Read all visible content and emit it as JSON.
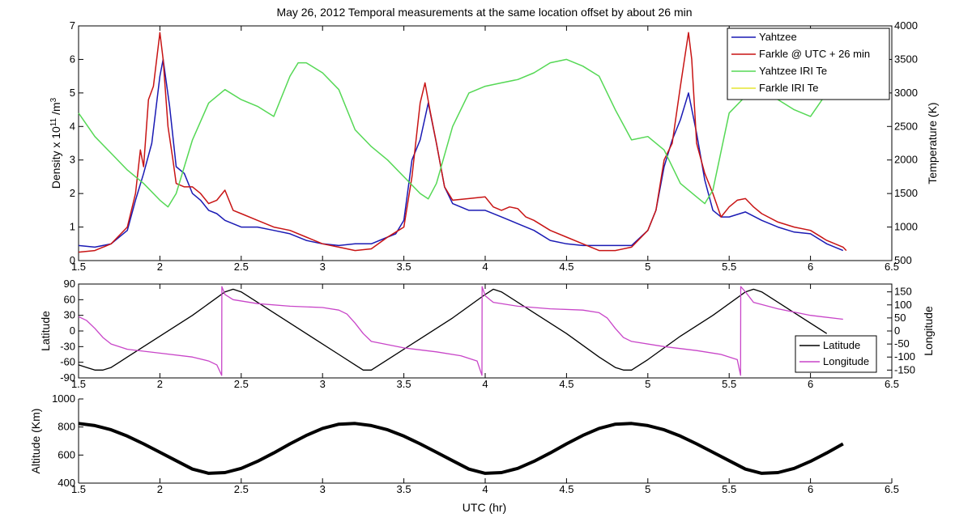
{
  "figure": {
    "title": "May 26, 2012 Temporal measurements at the same location offset by about 26 min",
    "xlabel": "UTC (hr)"
  },
  "chart_data": [
    {
      "type": "line",
      "panel": "density-temperature",
      "xlim": [
        1.5,
        6.5
      ],
      "x_ticks": [
        "1.5",
        "2",
        "2.5",
        "3",
        "3.5",
        "4",
        "4.5",
        "5",
        "5.5",
        "6",
        "6.5"
      ],
      "ylabel": "Density x 10",
      "ylabel_sup": "11",
      "ylabel_unit": " /m",
      "ylabel_unit_sup": "3",
      "ylim": [
        0,
        7
      ],
      "y_ticks": [
        "0",
        "1",
        "2",
        "3",
        "4",
        "5",
        "6",
        "7"
      ],
      "y2label": "Temperature (K)",
      "y2lim": [
        500,
        4000
      ],
      "y2_ticks": [
        "500",
        "1000",
        "1500",
        "2000",
        "2500",
        "3000",
        "3500",
        "4000"
      ],
      "legend": "top-right",
      "series": [
        {
          "name": "Yahtzee",
          "axis": "left",
          "color": "#1a1ab4",
          "x": [
            1.5,
            1.6,
            1.7,
            1.8,
            1.85,
            1.9,
            1.95,
            2.0,
            2.02,
            2.06,
            2.1,
            2.15,
            2.2,
            2.25,
            2.3,
            2.35,
            2.4,
            2.5,
            2.6,
            2.7,
            2.8,
            2.9,
            3.0,
            3.1,
            3.2,
            3.3,
            3.4,
            3.45,
            3.5,
            3.55,
            3.6,
            3.65,
            3.7,
            3.75,
            3.8,
            3.9,
            4.0,
            4.1,
            4.2,
            4.3,
            4.4,
            4.5,
            4.6,
            4.7,
            4.8,
            4.9,
            5.0,
            5.05,
            5.1,
            5.15,
            5.2,
            5.25,
            5.3,
            5.35,
            5.4,
            5.45,
            5.5,
            5.6,
            5.7,
            5.8,
            5.9,
            6.0,
            6.1,
            6.2
          ],
          "y": [
            0.45,
            0.4,
            0.5,
            0.9,
            1.8,
            2.6,
            3.5,
            5.5,
            6.0,
            4.6,
            2.8,
            2.6,
            2.0,
            1.8,
            1.5,
            1.4,
            1.2,
            1.0,
            1.0,
            0.9,
            0.8,
            0.6,
            0.5,
            0.45,
            0.5,
            0.5,
            0.7,
            0.8,
            1.2,
            3.0,
            3.6,
            4.7,
            3.5,
            2.2,
            1.7,
            1.5,
            1.5,
            1.3,
            1.1,
            0.9,
            0.6,
            0.5,
            0.45,
            0.45,
            0.45,
            0.45,
            0.9,
            1.5,
            2.8,
            3.6,
            4.2,
            5.0,
            3.8,
            2.4,
            1.5,
            1.3,
            1.3,
            1.45,
            1.2,
            1.0,
            0.85,
            0.8,
            0.5,
            0.3
          ]
        },
        {
          "name": "Farkle @ UTC + 26 min",
          "axis": "left",
          "color": "#c81414",
          "x": [
            1.5,
            1.6,
            1.7,
            1.8,
            1.85,
            1.88,
            1.9,
            1.93,
            1.96,
            2.0,
            2.02,
            2.05,
            2.08,
            2.1,
            2.15,
            2.2,
            2.25,
            2.3,
            2.35,
            2.4,
            2.45,
            2.5,
            2.6,
            2.7,
            2.8,
            2.9,
            3.0,
            3.1,
            3.2,
            3.3,
            3.4,
            3.45,
            3.5,
            3.55,
            3.6,
            3.63,
            3.66,
            3.7,
            3.75,
            3.8,
            3.9,
            4.0,
            4.05,
            4.1,
            4.15,
            4.2,
            4.25,
            4.3,
            4.4,
            4.5,
            4.6,
            4.7,
            4.8,
            4.9,
            5.0,
            5.05,
            5.1,
            5.15,
            5.2,
            5.25,
            5.27,
            5.3,
            5.35,
            5.4,
            5.45,
            5.5,
            5.55,
            5.6,
            5.65,
            5.7,
            5.8,
            5.9,
            6.0,
            6.1,
            6.2,
            6.22
          ],
          "y": [
            0.25,
            0.3,
            0.5,
            1.0,
            2.0,
            3.3,
            2.8,
            4.8,
            5.2,
            6.8,
            6.0,
            4.0,
            3.0,
            2.3,
            2.2,
            2.2,
            2.0,
            1.7,
            1.8,
            2.1,
            1.5,
            1.4,
            1.2,
            1.0,
            0.9,
            0.7,
            0.5,
            0.4,
            0.3,
            0.35,
            0.7,
            0.85,
            1.0,
            2.5,
            4.7,
            5.3,
            4.5,
            3.5,
            2.2,
            1.8,
            1.85,
            1.9,
            1.6,
            1.5,
            1.6,
            1.55,
            1.3,
            1.2,
            0.9,
            0.7,
            0.5,
            0.3,
            0.3,
            0.4,
            0.9,
            1.5,
            3.0,
            3.5,
            5.2,
            6.8,
            6.0,
            3.5,
            2.6,
            2.0,
            1.3,
            1.6,
            1.8,
            1.85,
            1.6,
            1.4,
            1.15,
            1.0,
            0.9,
            0.6,
            0.4,
            0.3
          ]
        },
        {
          "name": "Yahtzee IRI Te",
          "axis": "right",
          "color": "#55d855",
          "x": [
            1.5,
            1.6,
            1.7,
            1.8,
            1.9,
            2.0,
            2.05,
            2.1,
            2.2,
            2.3,
            2.4,
            2.5,
            2.6,
            2.7,
            2.8,
            2.85,
            2.9,
            3.0,
            3.1,
            3.2,
            3.3,
            3.4,
            3.5,
            3.6,
            3.65,
            3.7,
            3.8,
            3.9,
            4.0,
            4.1,
            4.2,
            4.3,
            4.4,
            4.5,
            4.6,
            4.7,
            4.8,
            4.9,
            5.0,
            5.1,
            5.2,
            5.3,
            5.35,
            5.4,
            5.5,
            5.6,
            5.7,
            5.8,
            5.9,
            6.0,
            6.1
          ],
          "y": [
            2700,
            2350,
            2100,
            1850,
            1650,
            1400,
            1300,
            1500,
            2300,
            2850,
            3050,
            2900,
            2800,
            2650,
            3250,
            3450,
            3450,
            3300,
            3050,
            2450,
            2200,
            2000,
            1750,
            1500,
            1420,
            1650,
            2500,
            3000,
            3100,
            3150,
            3200,
            3300,
            3450,
            3500,
            3400,
            3250,
            2750,
            2300,
            2350,
            2150,
            1650,
            1450,
            1350,
            1550,
            2700,
            2950,
            3100,
            2900,
            2750,
            2650,
            3000
          ]
        },
        {
          "name": "Farkle IRI Te",
          "axis": "right",
          "color": "#e6e632",
          "x": [],
          "y": []
        }
      ]
    },
    {
      "type": "line",
      "panel": "latitude-longitude",
      "xlim": [
        1.5,
        6.5
      ],
      "x_ticks": [
        "1.5",
        "2",
        "2.5",
        "3",
        "3.5",
        "4",
        "4.5",
        "5",
        "5.5",
        "6",
        "6.5"
      ],
      "ylabel": "Latitude",
      "ylim": [
        -90,
        90
      ],
      "y_ticks": [
        "-90",
        "-60",
        "-30",
        "0",
        "30",
        "60",
        "90"
      ],
      "y2label": "Longitude",
      "y2lim": [
        -180,
        180
      ],
      "y2_ticks": [
        "-150",
        "-100",
        "-50",
        "0",
        "50",
        "100",
        "150"
      ],
      "legend": "bottom-right",
      "series": [
        {
          "name": "Latitude",
          "axis": "left",
          "color": "#000000",
          "x": [
            1.5,
            1.55,
            1.6,
            1.65,
            1.7,
            1.75,
            1.8,
            2.0,
            2.2,
            2.4,
            2.45,
            2.5,
            2.7,
            2.9,
            3.1,
            3.2,
            3.25,
            3.3,
            3.4,
            3.6,
            3.8,
            4.0,
            4.05,
            4.1,
            4.3,
            4.5,
            4.7,
            4.8,
            4.85,
            4.9,
            5.0,
            5.2,
            5.4,
            5.6,
            5.65,
            5.7,
            5.9,
            6.1
          ],
          "y": [
            -65,
            -70,
            -75,
            -75,
            -70,
            -60,
            -50,
            -10,
            30,
            75,
            80,
            75,
            35,
            -5,
            -45,
            -65,
            -75,
            -75,
            -55,
            -15,
            25,
            70,
            80,
            75,
            35,
            -5,
            -50,
            -70,
            -75,
            -75,
            -55,
            -10,
            30,
            75,
            80,
            75,
            35,
            -5
          ]
        },
        {
          "name": "Longitude",
          "axis": "right",
          "color": "#c845c8",
          "x": [
            1.5,
            1.55,
            1.6,
            1.65,
            1.7,
            1.8,
            2.0,
            2.2,
            2.3,
            2.35,
            2.38,
            2.381,
            2.4,
            2.45,
            2.6,
            2.8,
            3.0,
            3.1,
            3.15,
            3.2,
            3.25,
            3.3,
            3.5,
            3.7,
            3.85,
            3.95,
            3.98,
            3.981,
            4.0,
            4.05,
            4.2,
            4.4,
            4.6,
            4.7,
            4.75,
            4.8,
            4.85,
            4.9,
            5.1,
            5.3,
            5.45,
            5.55,
            5.57,
            5.571,
            5.6,
            5.65,
            5.8,
            6.0,
            6.2
          ],
          "y": [
            55,
            40,
            10,
            -25,
            -50,
            -70,
            -85,
            -100,
            -115,
            -130,
            -170,
            170,
            140,
            120,
            105,
            95,
            90,
            80,
            65,
            30,
            -10,
            -40,
            -65,
            -80,
            -95,
            -115,
            -170,
            170,
            135,
            110,
            95,
            85,
            80,
            70,
            50,
            10,
            -25,
            -40,
            -60,
            -75,
            -90,
            -110,
            -170,
            170,
            150,
            110,
            85,
            60,
            45
          ]
        }
      ]
    },
    {
      "type": "line",
      "panel": "altitude",
      "xlim": [
        1.5,
        6.5
      ],
      "x_ticks": [
        "1.5",
        "2",
        "2.5",
        "3",
        "3.5",
        "4",
        "4.5",
        "5",
        "5.5",
        "6",
        "6.5"
      ],
      "ylabel": "Altitude (Km)",
      "ylim": [
        400,
        1000
      ],
      "y_ticks": [
        "400",
        "600",
        "800",
        "1000"
      ],
      "series": [
        {
          "name": "Altitude",
          "color": "#000000",
          "x": [
            1.5,
            1.6,
            1.7,
            1.8,
            1.9,
            2.0,
            2.1,
            2.2,
            2.3,
            2.4,
            2.5,
            2.6,
            2.7,
            2.8,
            2.9,
            3.0,
            3.1,
            3.2,
            3.3,
            3.4,
            3.5,
            3.6,
            3.7,
            3.8,
            3.9,
            4.0,
            4.1,
            4.2,
            4.3,
            4.4,
            4.5,
            4.6,
            4.7,
            4.8,
            4.9,
            5.0,
            5.1,
            5.2,
            5.3,
            5.4,
            5.5,
            5.6,
            5.7,
            5.8,
            5.9,
            6.0,
            6.1,
            6.2
          ],
          "y": [
            825,
            810,
            780,
            735,
            680,
            620,
            560,
            500,
            470,
            475,
            505,
            555,
            615,
            680,
            740,
            790,
            820,
            825,
            810,
            780,
            735,
            680,
            620,
            560,
            500,
            470,
            475,
            505,
            555,
            615,
            680,
            740,
            790,
            820,
            825,
            810,
            780,
            735,
            680,
            620,
            560,
            500,
            470,
            475,
            505,
            555,
            615,
            680
          ]
        }
      ]
    }
  ]
}
